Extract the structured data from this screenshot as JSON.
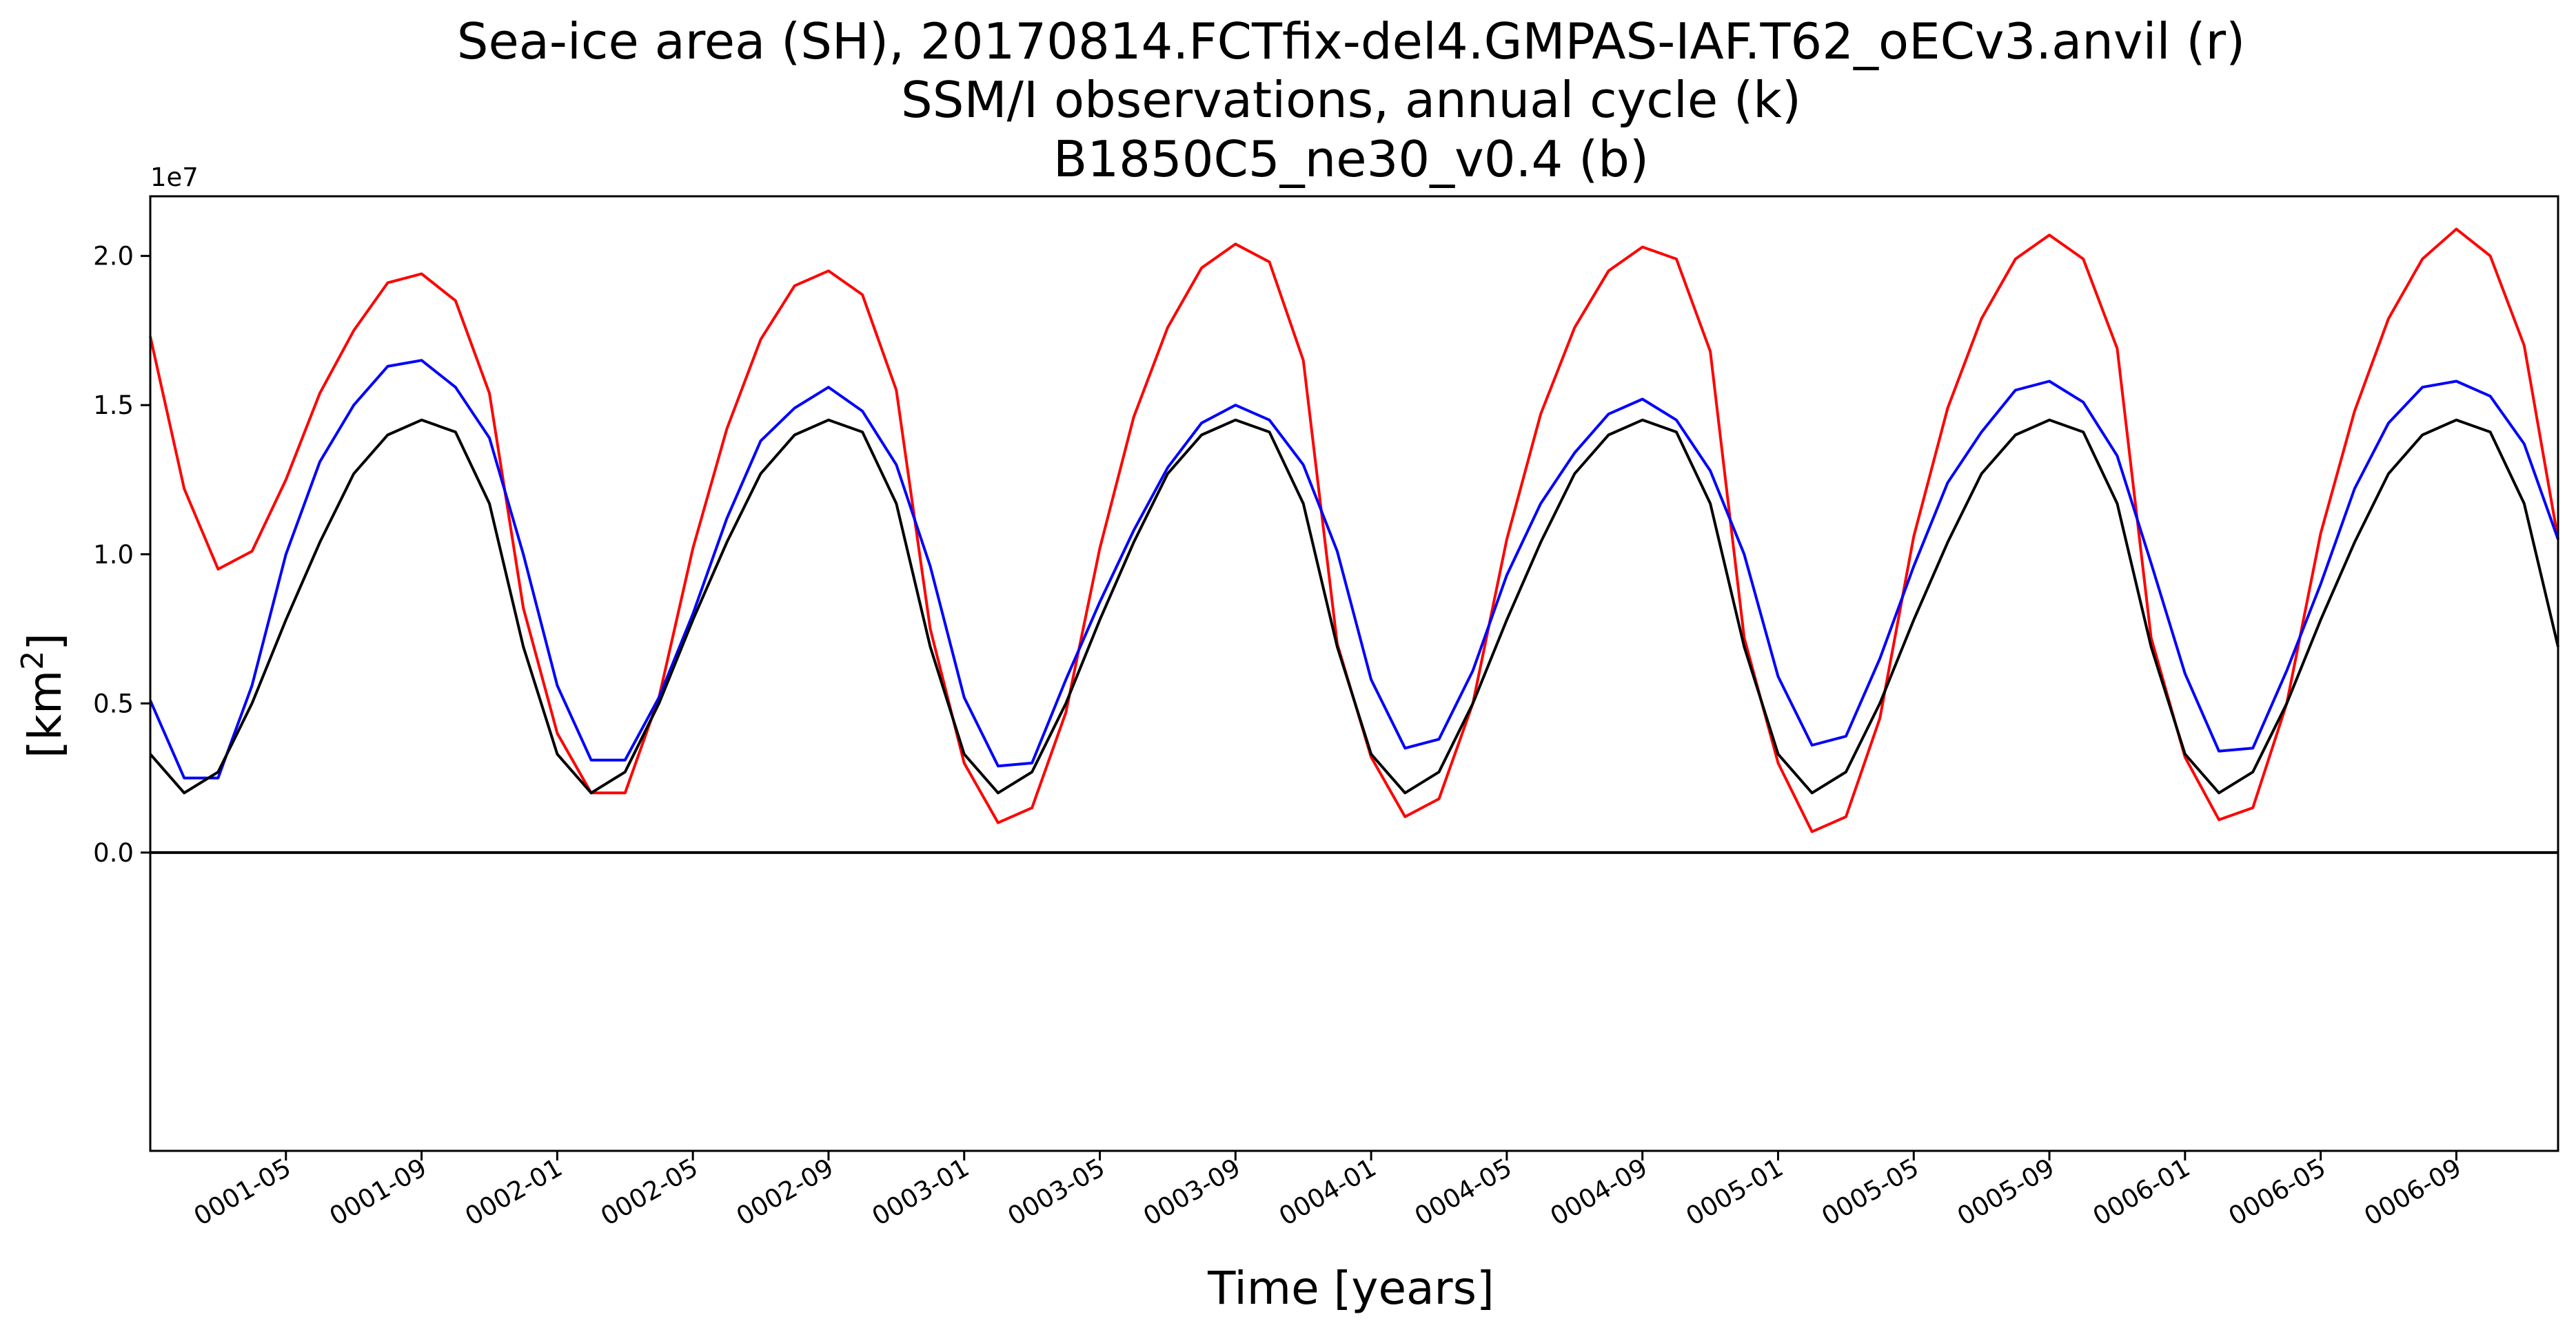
{
  "title": {
    "line1": "Sea-ice area (SH), 20170814.FCTfix-del4.GMPAS-IAF.T62_oECv3.anvil (r)",
    "line2": "SSM/I observations, annual cycle (k)",
    "line3": "B1850C5_ne30_v0.4 (b)"
  },
  "chart_data": {
    "type": "line",
    "title": "Sea-ice area (SH), 20170814.FCTfix-del4.GMPAS-IAF.T62_oECv3.anvil (r) / SSM/I observations, annual cycle (k) / B1850C5_ne30_v0.4 (b)",
    "xlabel": "Time [years]",
    "ylabel_base": "[km",
    "ylabel_sup": "2",
    "ylabel_close": "]",
    "y_exponent_label": "1e7",
    "y_exponent": 7,
    "ylim": [
      -1.0,
      2.2
    ],
    "xlim": [
      "0001-01",
      "0006-12"
    ],
    "x_tick_labels": [
      "0001-05",
      "0001-09",
      "0002-01",
      "0002-05",
      "0002-09",
      "0003-01",
      "0003-05",
      "0003-09",
      "0004-01",
      "0004-05",
      "0004-09",
      "0005-01",
      "0005-05",
      "0005-09",
      "0006-01",
      "0006-05",
      "0006-09"
    ],
    "y_ticks": [
      0.0,
      0.5,
      1.0,
      1.5,
      2.0
    ],
    "y_tick_labels": [
      "0.0",
      "0.5",
      "1.0",
      "1.5",
      "2.0"
    ],
    "reference_line_y": 0.0,
    "grid": false,
    "x": [
      "0001-01",
      "0001-02",
      "0001-03",
      "0001-04",
      "0001-05",
      "0001-06",
      "0001-07",
      "0001-08",
      "0001-09",
      "0001-10",
      "0001-11",
      "0001-12",
      "0002-01",
      "0002-02",
      "0002-03",
      "0002-04",
      "0002-05",
      "0002-06",
      "0002-07",
      "0002-08",
      "0002-09",
      "0002-10",
      "0002-11",
      "0002-12",
      "0003-01",
      "0003-02",
      "0003-03",
      "0003-04",
      "0003-05",
      "0003-06",
      "0003-07",
      "0003-08",
      "0003-09",
      "0003-10",
      "0003-11",
      "0003-12",
      "0004-01",
      "0004-02",
      "0004-03",
      "0004-04",
      "0004-05",
      "0004-06",
      "0004-07",
      "0004-08",
      "0004-09",
      "0004-10",
      "0004-11",
      "0004-12",
      "0005-01",
      "0005-02",
      "0005-03",
      "0005-04",
      "0005-05",
      "0005-06",
      "0005-07",
      "0005-08",
      "0005-09",
      "0005-10",
      "0005-11",
      "0005-12",
      "0006-01",
      "0006-02",
      "0006-03",
      "0006-04",
      "0006-05",
      "0006-06",
      "0006-07",
      "0006-08",
      "0006-09",
      "0006-10",
      "0006-11",
      "0006-12"
    ],
    "series": [
      {
        "color": "#ff0000",
        "values": [
          1.73,
          1.22,
          0.95,
          1.01,
          1.25,
          1.54,
          1.75,
          1.91,
          1.94,
          1.85,
          1.54,
          0.82,
          0.4,
          0.2,
          0.2,
          0.52,
          1.02,
          1.42,
          1.72,
          1.9,
          1.95,
          1.87,
          1.55,
          0.75,
          0.3,
          0.1,
          0.15,
          0.47,
          1.02,
          1.46,
          1.76,
          1.96,
          2.04,
          1.98,
          1.65,
          0.7,
          0.32,
          0.12,
          0.18,
          0.5,
          1.05,
          1.47,
          1.76,
          1.95,
          2.03,
          1.99,
          1.68,
          0.72,
          0.3,
          0.07,
          0.12,
          0.45,
          1.06,
          1.49,
          1.79,
          1.99,
          2.07,
          1.99,
          1.69,
          0.72,
          0.32,
          0.11,
          0.15,
          0.5,
          1.07,
          1.48,
          1.79,
          1.99,
          2.09,
          2.0,
          1.7,
          1.05
        ]
      },
      {
        "color": "#0000ff",
        "values": [
          0.51,
          0.25,
          0.25,
          0.56,
          1.0,
          1.31,
          1.5,
          1.63,
          1.65,
          1.56,
          1.39,
          1.0,
          0.56,
          0.31,
          0.31,
          0.52,
          0.8,
          1.12,
          1.38,
          1.49,
          1.56,
          1.48,
          1.3,
          0.96,
          0.52,
          0.29,
          0.3,
          0.58,
          0.84,
          1.08,
          1.29,
          1.44,
          1.5,
          1.45,
          1.3,
          1.01,
          0.58,
          0.35,
          0.38,
          0.61,
          0.93,
          1.17,
          1.34,
          1.47,
          1.52,
          1.45,
          1.28,
          1.0,
          0.59,
          0.36,
          0.39,
          0.65,
          0.96,
          1.24,
          1.41,
          1.55,
          1.58,
          1.51,
          1.33,
          0.97,
          0.6,
          0.34,
          0.35,
          0.61,
          0.9,
          1.22,
          1.44,
          1.56,
          1.58,
          1.53,
          1.37,
          1.05
        ]
      },
      {
        "color": "#000000",
        "values": [
          0.33,
          0.2,
          0.27,
          0.5,
          0.78,
          1.04,
          1.27,
          1.4,
          1.45,
          1.41,
          1.17,
          0.69,
          0.33,
          0.2,
          0.27,
          0.5,
          0.78,
          1.04,
          1.27,
          1.4,
          1.45,
          1.41,
          1.17,
          0.69,
          0.33,
          0.2,
          0.27,
          0.5,
          0.78,
          1.04,
          1.27,
          1.4,
          1.45,
          1.41,
          1.17,
          0.69,
          0.33,
          0.2,
          0.27,
          0.5,
          0.78,
          1.04,
          1.27,
          1.4,
          1.45,
          1.41,
          1.17,
          0.69,
          0.33,
          0.2,
          0.27,
          0.5,
          0.78,
          1.04,
          1.27,
          1.4,
          1.45,
          1.41,
          1.17,
          0.69,
          0.33,
          0.2,
          0.27,
          0.5,
          0.78,
          1.04,
          1.27,
          1.4,
          1.45,
          1.41,
          1.17,
          0.69
        ]
      }
    ]
  }
}
